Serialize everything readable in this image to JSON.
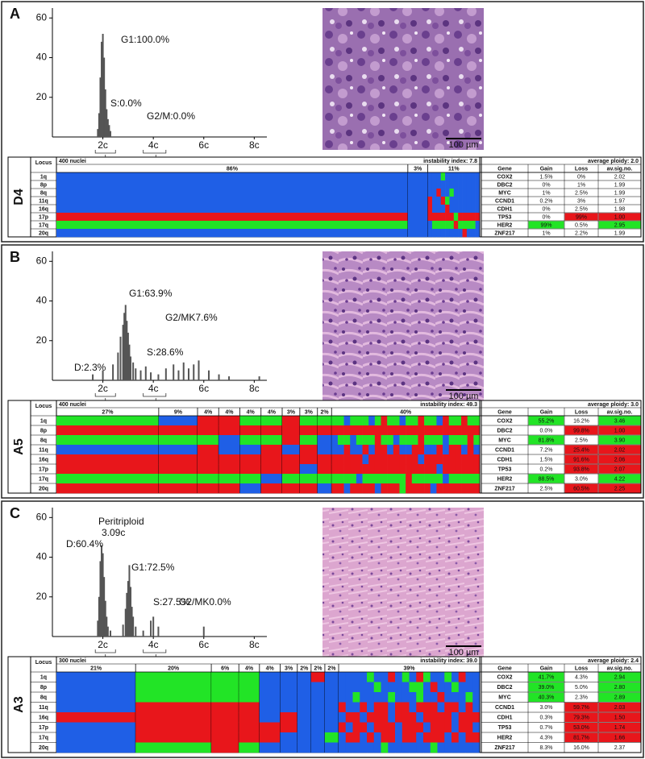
{
  "loci": [
    "1q",
    "8p",
    "8q",
    "11q",
    "16q",
    "17p",
    "17q",
    "20q"
  ],
  "table_headers": {
    "locus": "Locus",
    "gene": "Gene",
    "gain": "Gain",
    "loss": "Loss",
    "av": "av.sig.no."
  },
  "state_colors": {
    "B": "#1f5fe6",
    "R": "#e8161b",
    "G": "#22e426"
  },
  "panels": [
    {
      "letter": "A",
      "sample": "D4",
      "scale_bar": "100 µm",
      "histogram": {
        "ylim": [
          0,
          65
        ],
        "yticks": [
          20,
          40,
          60
        ],
        "xlim": [
          0,
          8.5
        ],
        "xticks": [
          {
            "value": 2,
            "label": "2c"
          },
          {
            "value": 4,
            "label": "4c"
          },
          {
            "value": 6,
            "label": "6c"
          },
          {
            "value": 8,
            "label": "8c"
          }
        ],
        "bars": {
          "x": [
            1.8,
            1.85,
            1.9,
            1.95,
            2.0,
            2.05,
            2.1,
            2.15,
            2.2,
            2.25,
            2.3
          ],
          "values": [
            4,
            12,
            30,
            48,
            52,
            40,
            24,
            14,
            9,
            6,
            3
          ]
        },
        "annotations": [
          "G1:100.0%",
          "S:0.0%",
          "G2/M:0.0%"
        ]
      },
      "table": {
        "nuclei": "400 nuclei",
        "instability_index": "instability index: 7.8",
        "average_ploidy": "average ploidy: 2.0",
        "clones": [
          {
            "share": 86,
            "label": "86%",
            "states": [
              "B",
              "B",
              "B",
              "B",
              "B",
              "R",
              "G",
              "B"
            ]
          },
          {
            "share": 3,
            "label": "3%",
            "states": [
              "B",
              "B",
              "B",
              "B",
              "B",
              "B",
              "B",
              "B"
            ]
          },
          {
            "share": 11,
            "label": "11%",
            "states": [
              "BBBGBBBBBBBB",
              "BBBBBBBBBBBB",
              "BBRBBGBBBBBB",
              "RBBRGBBBBBBB",
              "RBBBRBBBBBBB",
              "RRRRRRGRRRRR",
              "BGGGGGRGGGGB",
              "BBBBBBBBRBBB"
            ]
          }
        ],
        "genes": [
          {
            "gene": "COX2",
            "gain": "1.5%",
            "loss": "0%",
            "av": "2.02",
            "highlight": null
          },
          {
            "gene": "DBC2",
            "gain": "0%",
            "loss": "1%",
            "av": "1.99",
            "highlight": null
          },
          {
            "gene": "MYC",
            "gain": "1%",
            "loss": "2.5%",
            "av": "1.99",
            "highlight": null
          },
          {
            "gene": "CCND1",
            "gain": "0.2%",
            "loss": "3%",
            "av": "1.97",
            "highlight": null
          },
          {
            "gene": "CDH1",
            "gain": "0%",
            "loss": "2.5%",
            "av": "1.98",
            "highlight": null
          },
          {
            "gene": "TP53",
            "gain": "0%",
            "loss": "99%",
            "av": "1.00",
            "highlight": "loss"
          },
          {
            "gene": "HER2",
            "gain": "99%",
            "loss": "0.5%",
            "av": "2.95",
            "highlight": "gain"
          },
          {
            "gene": "ZNF217",
            "gain": "1%",
            "loss": "2.2%",
            "av": "1.99",
            "highlight": null
          }
        ]
      }
    },
    {
      "letter": "B",
      "sample": "A5",
      "scale_bar": "100 µm",
      "histogram": {
        "ylim": [
          0,
          65
        ],
        "yticks": [
          20,
          40,
          60
        ],
        "xlim": [
          0,
          8.5
        ],
        "xticks": [
          {
            "value": 2,
            "label": "2c"
          },
          {
            "value": 4,
            "label": "4c"
          },
          {
            "value": 6,
            "label": "6c"
          },
          {
            "value": 8,
            "label": "8c"
          }
        ],
        "bars": {
          "x": [
            1.6,
            2.0,
            2.4,
            2.6,
            2.7,
            2.8,
            2.85,
            2.9,
            2.95,
            3.0,
            3.05,
            3.1,
            3.2,
            3.3,
            3.5,
            3.7,
            3.9,
            4.2,
            4.5,
            4.8,
            5.0,
            5.2,
            5.4,
            5.6,
            5.8,
            6.2,
            6.6,
            7.0,
            8.2
          ],
          "values": [
            3,
            5,
            8,
            14,
            22,
            28,
            34,
            38,
            30,
            24,
            18,
            12,
            9,
            6,
            5,
            7,
            4,
            3,
            6,
            8,
            5,
            9,
            6,
            8,
            10,
            5,
            3,
            2,
            2
          ]
        },
        "annotations": [
          "G1:63.9%",
          "G2/MK7.6%",
          "S:28.6%",
          "D:2.3%"
        ]
      },
      "table": {
        "nuclei": "400 nuclei",
        "instability_index": "instability index: 49.3",
        "average_ploidy": "average ploidy: 3.0",
        "clones": [
          {
            "share": 27,
            "label": "27%",
            "states": [
              "G",
              "R",
              "G",
              "B",
              "R",
              "R",
              "G",
              "R"
            ]
          },
          {
            "share": 9,
            "label": "9%",
            "states": [
              "B",
              "R",
              "G",
              "B",
              "R",
              "R",
              "G",
              "R"
            ]
          },
          {
            "share": 4,
            "label": "4%",
            "states": [
              "R",
              "R",
              "G",
              "R",
              "R",
              "R",
              "G",
              "R"
            ]
          },
          {
            "share": 4,
            "label": "4%",
            "states": [
              "R",
              "R",
              "B",
              "B",
              "R",
              "R",
              "G",
              "R"
            ]
          },
          {
            "share": 4,
            "label": "4%",
            "states": [
              "G",
              "R",
              "G",
              "B",
              "R",
              "R",
              "G",
              "B"
            ]
          },
          {
            "share": 4,
            "label": "4%",
            "states": [
              "G",
              "R",
              "G",
              "R",
              "R",
              "R",
              "B",
              "R"
            ]
          },
          {
            "share": 3,
            "label": "3%",
            "states": [
              "R",
              "R",
              "R",
              "B",
              "R",
              "R",
              "G",
              "R"
            ]
          },
          {
            "share": 3,
            "label": "3%",
            "states": [
              "G",
              "R",
              "G",
              "R",
              "R",
              "B",
              "G",
              "R"
            ]
          },
          {
            "share": 2,
            "label": "2%",
            "states": [
              "G",
              "R",
              "B",
              "B",
              "R",
              "R",
              "G",
              "B"
            ]
          },
          {
            "share": 40,
            "label": "40%",
            "states": [
              "GGBGGGBGRGGBGGRGGBRGGRGG",
              "RRRRRRRRRRRRRRRRRRRRRRRR",
              "BGGBGGGRGGBGGGRGGGBGGGRG",
              "BBRBBRBRRBRBBRRBBRBRRBRB",
              "RRRRRBRRRRRRRRBRRRRRRRRR",
              "RRRRRRRRRRRRRRRRRBRRRRRR",
              "GGGGBGGGGGGGRGGGGGBGGGGG",
              "RRBRRRRBRRRGRRRRBRRRRRRR"
            ]
          }
        ],
        "genes": [
          {
            "gene": "COX2",
            "gain": "55.2%",
            "loss": "16.2%",
            "av": "3.46",
            "highlight": "gain"
          },
          {
            "gene": "DBC2",
            "gain": "0.0%",
            "loss": "99.8%",
            "av": "1.00",
            "highlight": "loss"
          },
          {
            "gene": "MYC",
            "gain": "81.8%",
            "loss": "2.5%",
            "av": "3.90",
            "highlight": "gain"
          },
          {
            "gene": "CCND1",
            "gain": "7.2%",
            "loss": "25.4%",
            "av": "2.02",
            "highlight": "loss"
          },
          {
            "gene": "CDH1",
            "gain": "1.5%",
            "loss": "91.6%",
            "av": "2.06",
            "highlight": "loss"
          },
          {
            "gene": "TP53",
            "gain": "0.2%",
            "loss": "93.8%",
            "av": "2.07",
            "highlight": "loss"
          },
          {
            "gene": "HER2",
            "gain": "88.5%",
            "loss": "3.0%",
            "av": "4.22",
            "highlight": "gain"
          },
          {
            "gene": "ZNF217",
            "gain": "2.5%",
            "loss": "60.5%",
            "av": "2.25",
            "highlight": "loss"
          }
        ]
      }
    },
    {
      "letter": "C",
      "sample": "A3",
      "scale_bar": "100 µm",
      "histogram": {
        "ylim": [
          0,
          65
        ],
        "yticks": [
          20,
          40,
          60
        ],
        "xlim": [
          0,
          8.5
        ],
        "xticks": [
          {
            "value": 2,
            "label": "2c"
          },
          {
            "value": 4,
            "label": "4c"
          },
          {
            "value": 6,
            "label": "6c"
          },
          {
            "value": 8,
            "label": "8c"
          }
        ],
        "bars": {
          "x": [
            1.8,
            1.85,
            1.9,
            1.95,
            2.0,
            2.05,
            2.1,
            2.15,
            2.2,
            2.3,
            2.8,
            2.9,
            2.95,
            3.0,
            3.05,
            3.1,
            3.15,
            3.2,
            3.3,
            3.6,
            3.9,
            4.0,
            4.2,
            6.0
          ],
          "values": [
            8,
            20,
            38,
            46,
            42,
            30,
            18,
            10,
            5,
            3,
            6,
            14,
            22,
            28,
            36,
            25,
            15,
            10,
            5,
            3,
            8,
            10,
            5,
            5
          ]
        },
        "annotations": [
          "Peritriploid",
          "3.09c",
          "D:60.4%",
          "G1:72.5%",
          "S:27.5%",
          "G2/MK0.0%"
        ]
      },
      "table": {
        "nuclei": "300 nuclei",
        "instability_index": "instability index: 39.0",
        "average_ploidy": "average ploidy: 2.4",
        "clones": [
          {
            "share": 21,
            "label": "21%",
            "states": [
              "B",
              "B",
              "B",
              "B",
              "R",
              "B",
              "B",
              "B"
            ]
          },
          {
            "share": 20,
            "label": "20%",
            "states": [
              "G",
              "G",
              "G",
              "R",
              "R",
              "R",
              "R",
              "G"
            ]
          },
          {
            "share": 6,
            "label": "6%",
            "states": [
              "G",
              "G",
              "G",
              "R",
              "R",
              "R",
              "R",
              "R"
            ]
          },
          {
            "share": 4,
            "label": "4%",
            "states": [
              "G",
              "G",
              "G",
              "R",
              "R",
              "R",
              "R",
              "G"
            ]
          },
          {
            "share": 4,
            "label": "4%",
            "states": [
              "B",
              "B",
              "B",
              "B",
              "B",
              "R",
              "R",
              "B"
            ]
          },
          {
            "share": 3,
            "label": "3%",
            "states": [
              "B",
              "B",
              "B",
              "B",
              "R",
              "R",
              "B",
              "B"
            ]
          },
          {
            "share": 2,
            "label": "2%",
            "states": [
              "B",
              "B",
              "B",
              "B",
              "B",
              "B",
              "B",
              "B"
            ]
          },
          {
            "share": 2,
            "label": "2%",
            "states": [
              "R",
              "B",
              "B",
              "B",
              "B",
              "B",
              "B",
              "B"
            ]
          },
          {
            "share": 2,
            "label": "2%",
            "states": [
              "B",
              "B",
              "B",
              "B",
              "B",
              "B",
              "G",
              "B"
            ]
          },
          {
            "share": 39,
            "label": "39%",
            "states": [
              "BBBBGBBRBGBRGBBGBRBB",
              "BBBBBGBBBBGGBRBBGBBB",
              "BBGBBBBGBBBGBBRBBBGB",
              "RBBRBRRBRRBRRRBRRBRB",
              "BRRBRRRBRRRBRRRRBRRR",
              "RBRRBRRRBRRRBRRRBRRB",
              "BRRBRBRRBRRBRRRBRBRR",
              "BBBBBBGBBBBBBGBBBBBB"
            ]
          }
        ],
        "genes": [
          {
            "gene": "COX2",
            "gain": "41.7%",
            "loss": "4.3%",
            "av": "2.94",
            "highlight": "gain"
          },
          {
            "gene": "DBC2",
            "gain": "39.0%",
            "loss": "5.0%",
            "av": "2.80",
            "highlight": "gain"
          },
          {
            "gene": "MYC",
            "gain": "40.3%",
            "loss": "2.3%",
            "av": "2.89",
            "highlight": "gain"
          },
          {
            "gene": "CCND1",
            "gain": "3.0%",
            "loss": "59.7%",
            "av": "2.03",
            "highlight": "loss"
          },
          {
            "gene": "CDH1",
            "gain": "0.3%",
            "loss": "79.3%",
            "av": "1.50",
            "highlight": "loss"
          },
          {
            "gene": "TP53",
            "gain": "0.7%",
            "loss": "53.0%",
            "av": "1.74",
            "highlight": "loss"
          },
          {
            "gene": "HER2",
            "gain": "4.3%",
            "loss": "81.7%",
            "av": "1.66",
            "highlight": "loss"
          },
          {
            "gene": "ZNF217",
            "gain": "8.3%",
            "loss": "16.0%",
            "av": "2.37",
            "highlight": null
          }
        ]
      }
    }
  ]
}
